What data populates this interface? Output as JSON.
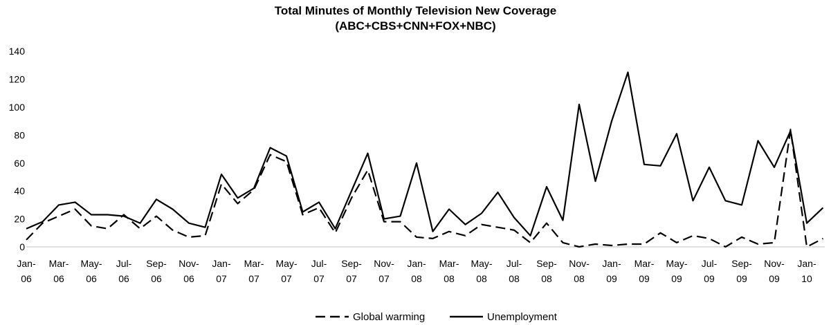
{
  "chart_data": {
    "type": "line",
    "title": "Total Minutes of Monthly Television New Coverage",
    "subtitle": "(ABC+CBS+CNN+FOX+NBC)",
    "xlabel": "",
    "ylabel": "",
    "ylim": [
      0,
      140
    ],
    "yticks": [
      "0",
      "20",
      "40",
      "60",
      "80",
      "100",
      "120",
      "140"
    ],
    "grid": "none",
    "legend_position": "bottom",
    "x": [
      "Jan-06",
      "Feb-06",
      "Mar-06",
      "Apr-06",
      "May-06",
      "Jun-06",
      "Jul-06",
      "Aug-06",
      "Sep-06",
      "Oct-06",
      "Nov-06",
      "Dec-06",
      "Jan-07",
      "Feb-07",
      "Mar-07",
      "Apr-07",
      "May-07",
      "Jun-07",
      "Jul-07",
      "Aug-07",
      "Sep-07",
      "Oct-07",
      "Nov-07",
      "Dec-07",
      "Jan-08",
      "Feb-08",
      "Mar-08",
      "Apr-08",
      "May-08",
      "Jun-08",
      "Jul-08",
      "Aug-08",
      "Sep-08",
      "Oct-08",
      "Nov-08",
      "Dec-08",
      "Jan-09",
      "Feb-09",
      "Mar-09",
      "Apr-09",
      "May-09",
      "Jun-09",
      "Jul-09",
      "Aug-09",
      "Sep-09",
      "Oct-09",
      "Nov-09",
      "Dec-09",
      "Jan-10",
      "Feb-10"
    ],
    "xtick_labels": [
      [
        "Jan-",
        "06"
      ],
      [
        "Mar-",
        "06"
      ],
      [
        "May-",
        "06"
      ],
      [
        "Jul-",
        "06"
      ],
      [
        "Sep-",
        "06"
      ],
      [
        "Nov-",
        "06"
      ],
      [
        "Jan-",
        "07"
      ],
      [
        "Mar-",
        "07"
      ],
      [
        "May-",
        "07"
      ],
      [
        "Jul-",
        "07"
      ],
      [
        "Sep-",
        "07"
      ],
      [
        "Nov-",
        "07"
      ],
      [
        "Jan-",
        "08"
      ],
      [
        "Mar-",
        "08"
      ],
      [
        "May-",
        "08"
      ],
      [
        "Jul-",
        "08"
      ],
      [
        "Sep-",
        "08"
      ],
      [
        "Nov-",
        "08"
      ],
      [
        "Jan-",
        "09"
      ],
      [
        "Mar-",
        "09"
      ],
      [
        "May-",
        "09"
      ],
      [
        "Jul-",
        "09"
      ],
      [
        "Sep-",
        "09"
      ],
      [
        "Nov-",
        "09"
      ],
      [
        "Jan-",
        "10"
      ]
    ],
    "series": [
      {
        "name": "Global warming",
        "style": "dashed",
        "color": "#000000",
        "values": [
          5,
          17,
          22,
          27,
          15,
          13,
          23,
          13,
          22,
          12,
          7,
          8,
          45,
          31,
          41,
          66,
          61,
          23,
          28,
          10,
          35,
          55,
          18,
          18,
          7,
          6,
          11,
          8,
          16,
          14,
          12,
          3,
          17,
          3,
          0,
          2,
          1,
          2,
          2,
          10,
          3,
          8,
          6,
          0,
          7,
          2,
          3,
          84,
          0,
          6
        ]
      },
      {
        "name": "Unemployment",
        "style": "solid",
        "color": "#000000",
        "values": [
          13,
          18,
          30,
          32,
          23,
          23,
          22,
          17,
          34,
          27,
          17,
          14,
          52,
          35,
          42,
          71,
          65,
          25,
          32,
          13,
          40,
          67,
          20,
          22,
          60,
          11,
          27,
          16,
          24,
          39,
          21,
          8,
          43,
          19,
          102,
          47,
          90,
          125,
          59,
          58,
          81,
          33,
          57,
          33,
          30,
          76,
          57,
          83,
          17,
          28
        ]
      }
    ]
  }
}
